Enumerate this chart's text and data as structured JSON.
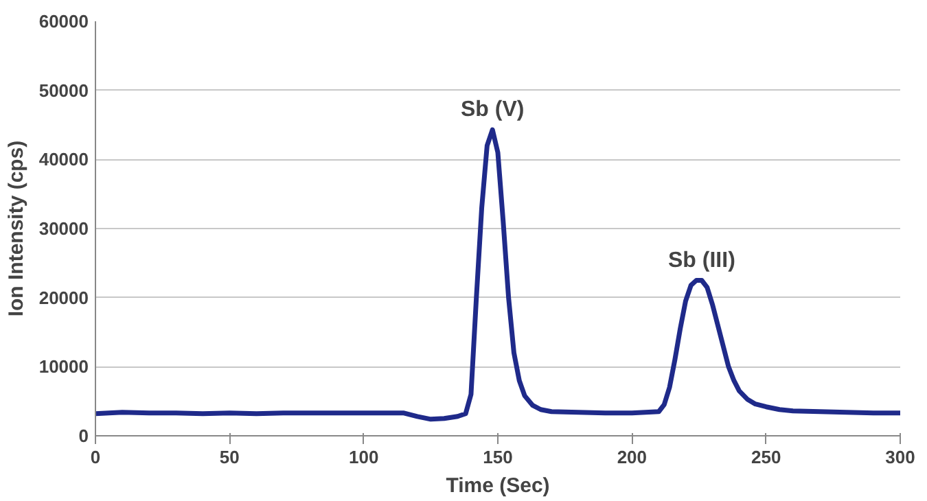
{
  "chart_data": {
    "type": "line",
    "xlabel": "Time (Sec)",
    "ylabel": "Ion Intensity (cps)",
    "xlim": [
      0,
      300
    ],
    "ylim": [
      0,
      60000
    ],
    "xticks": [
      0,
      50,
      100,
      150,
      200,
      250,
      300
    ],
    "yticks": [
      0,
      10000,
      20000,
      30000,
      40000,
      50000,
      60000
    ],
    "grid": "y",
    "annotations": [
      {
        "text": "Sb (V)",
        "x": 148,
        "y": 44300
      },
      {
        "text": "Sb (III)",
        "x": 226,
        "y": 22500
      }
    ],
    "series": [
      {
        "color": "#1f2a8a",
        "x": [
          0,
          5,
          10,
          20,
          30,
          40,
          50,
          60,
          70,
          80,
          90,
          100,
          110,
          115,
          120,
          125,
          130,
          135,
          138,
          140,
          142,
          144,
          146,
          148,
          150,
          152,
          154,
          156,
          158,
          160,
          163,
          166,
          170,
          180,
          190,
          200,
          205,
          210,
          212,
          214,
          216,
          218,
          220,
          222,
          224,
          226,
          228,
          230,
          232,
          234,
          236,
          238,
          240,
          243,
          246,
          250,
          255,
          260,
          270,
          280,
          290,
          300
        ],
        "values": [
          3200,
          3300,
          3400,
          3300,
          3300,
          3200,
          3300,
          3200,
          3300,
          3300,
          3300,
          3300,
          3300,
          3300,
          2800,
          2400,
          2500,
          2800,
          3200,
          6000,
          20000,
          33000,
          42000,
          44300,
          41000,
          31000,
          20000,
          12000,
          8000,
          5800,
          4400,
          3800,
          3500,
          3400,
          3300,
          3300,
          3400,
          3500,
          4500,
          7000,
          11000,
          15500,
          19500,
          21800,
          22500,
          22500,
          21500,
          19000,
          16000,
          13000,
          10000,
          8000,
          6500,
          5300,
          4600,
          4200,
          3800,
          3600,
          3500,
          3400,
          3300,
          3300
        ]
      }
    ]
  }
}
